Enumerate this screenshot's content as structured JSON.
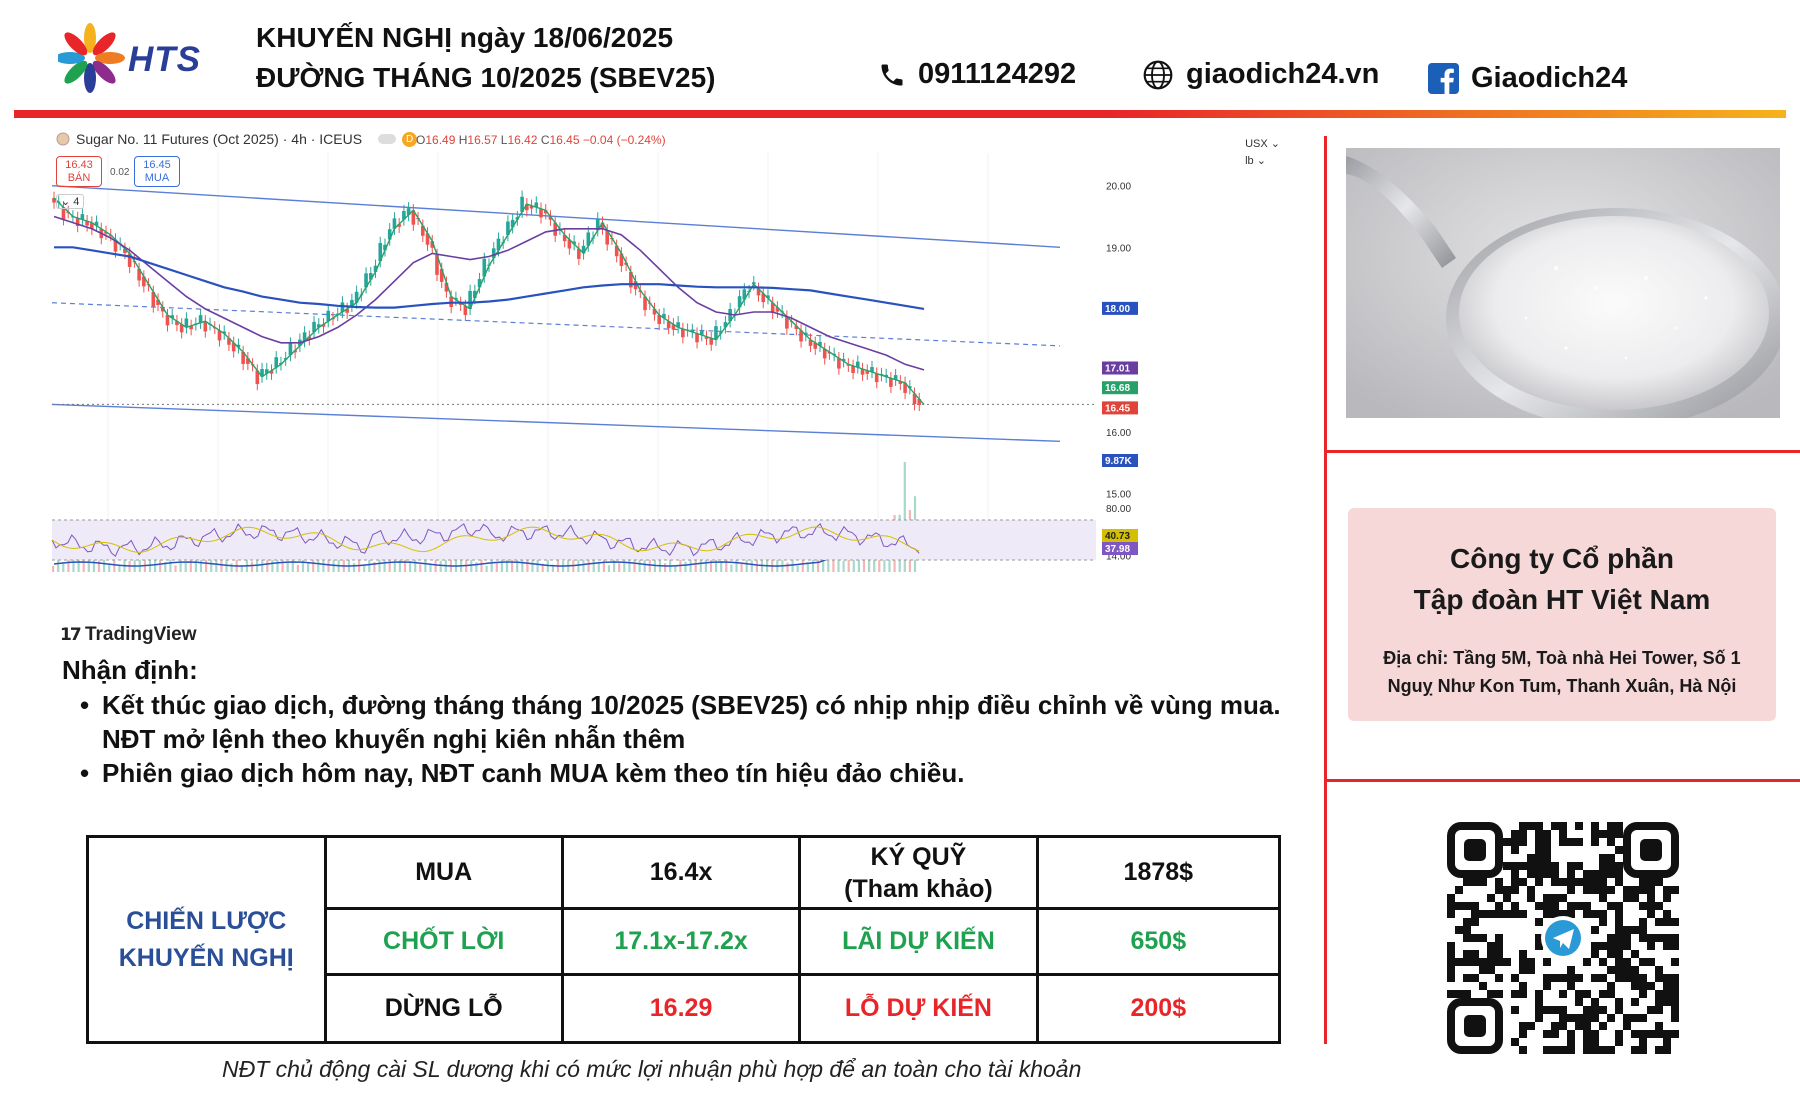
{
  "brand": {
    "logo_text": "HTS",
    "logo_icon": "hts-pinwheel-logo"
  },
  "header": {
    "title_line1": "KHUYẾN NGHỊ ngày 18/06/2025",
    "title_line2": "ĐƯỜNG THÁNG 10/2025 (SBEV25)",
    "phone": "0911124292",
    "website": "giaodich24.vn",
    "facebook": "Giaodich24"
  },
  "colors": {
    "accent_red": "#e8262a",
    "brand_blue": "#2a3e98",
    "profit_green": "#1ea24f",
    "strategy_blue": "#2a4f98",
    "company_box_bg": "#f6d8d8"
  },
  "chart_header": {
    "symbol": "Sugar No. 11 Futures (Oct 2025) · 4h · ICEUS",
    "delay_badge": "D",
    "ohlc": {
      "o": "16.49",
      "h": "16.57",
      "l": "16.42",
      "c": "16.45",
      "change": "−0.04 (−0.24%)"
    },
    "sell_price": "16.43",
    "sell_label": "BÁN",
    "buy_price": "16.45",
    "buy_label": "MUA",
    "spread": "0.02",
    "indicator_count": "4",
    "currency": "USX",
    "unit": "lb",
    "watermark": "TradingView"
  },
  "chart_data": {
    "type": "line",
    "title": "Sugar No. 11 Futures (Oct 2025) · 4h · ICEUS",
    "ylim": [
      13.6,
      20.4
    ],
    "y_ticks": [
      "20.00",
      "19.00",
      "18.00",
      "17.00",
      "16.00",
      "15.00",
      "14.00"
    ],
    "price_labels": [
      {
        "value": "18.00",
        "color": "#2a52be"
      },
      {
        "value": "17.01",
        "color": "#6a3ea1"
      },
      {
        "value": "16.68",
        "color": "#26a269"
      },
      {
        "value": "16.45",
        "color": "#e0433a"
      },
      {
        "value": "9.87K",
        "color": "#2a52be"
      }
    ],
    "rsi_ticks": [
      "80.00"
    ],
    "rsi_labels": [
      {
        "value": "40.73",
        "color": "#d4c000"
      },
      {
        "value": "37.98",
        "color": "#7e57c2"
      }
    ],
    "series": [
      {
        "values": [
          19.8,
          19.5,
          19.4,
          19.2,
          18.9,
          18.4,
          17.9,
          17.7,
          17.8,
          17.6,
          17.3,
          16.9,
          17.1,
          17.4,
          17.7,
          17.9,
          18.1,
          18.6,
          19.3,
          19.6,
          19.1,
          18.2,
          18.0,
          18.7,
          19.2,
          19.7,
          19.6,
          19.2,
          18.9,
          19.4,
          18.9,
          18.3,
          17.9,
          17.7,
          17.6,
          17.5,
          17.9,
          18.4,
          18.1,
          17.8,
          17.5,
          17.3,
          17.1,
          17.0,
          16.9,
          16.8,
          16.45
        ]
      },
      {
        "values": [
          19.5,
          19.4,
          19.3,
          19.15,
          18.95,
          18.7,
          18.45,
          18.2,
          18.0,
          17.85,
          17.7,
          17.55,
          17.45,
          17.45,
          17.55,
          17.7,
          17.9,
          18.15,
          18.45,
          18.75,
          18.9,
          18.85,
          18.8,
          18.85,
          18.95,
          19.1,
          19.25,
          19.3,
          19.3,
          19.3,
          19.2,
          18.95,
          18.65,
          18.35,
          18.1,
          17.95,
          17.9,
          17.95,
          17.95,
          17.85,
          17.7,
          17.55,
          17.45,
          17.35,
          17.25,
          17.1,
          17.01
        ]
      },
      {
        "values": [
          19.0,
          19.0,
          18.95,
          18.9,
          18.85,
          18.75,
          18.65,
          18.55,
          18.45,
          18.35,
          18.28,
          18.2,
          18.15,
          18.1,
          18.08,
          18.05,
          18.03,
          18.02,
          18.02,
          18.05,
          18.08,
          18.1,
          18.1,
          18.12,
          18.15,
          18.2,
          18.25,
          18.3,
          18.35,
          18.38,
          18.4,
          18.4,
          18.4,
          18.38,
          18.36,
          18.35,
          18.35,
          18.35,
          18.34,
          18.32,
          18.3,
          18.25,
          18.2,
          18.15,
          18.1,
          18.05,
          18.0
        ]
      }
    ]
  },
  "analysis": {
    "title": "Nhận định:",
    "bullets": [
      "Kết thúc giao dịch, đường tháng tháng 10/2025 (SBEV25) có nhịp nhịp điều chỉnh về vùng mua.",
      "Phiên giao dịch hôm nay, NĐT canh MUA kèm theo tín hiệu đảo chiều."
    ],
    "bullet1_line2": "NĐT mở lệnh theo khuyến nghị kiên nhẫn thêm"
  },
  "strategy_table": {
    "label_line1": "CHIẾN LƯỢC",
    "label_line2": "KHUYẾN NGHỊ",
    "row1": {
      "action": "MUA",
      "price": "16.4x",
      "margin_label_1": "KÝ QUỸ",
      "margin_label_2": "(Tham khảo)",
      "margin_value": "1878$"
    },
    "row2": {
      "action": "CHỐT LỜI",
      "price": "17.1x-17.2x",
      "label": "LÃI DỰ KIẾN",
      "value": "650$"
    },
    "row3": {
      "action": "DỪNG LỖ",
      "price": "16.29",
      "label": "LỖ DỰ KIẾN",
      "value": "200$"
    }
  },
  "disclaimer": "NĐT chủ động cài SL dương khi có mức lợi nhuận phù hợp để an toàn cho tài khoản",
  "company": {
    "name_line1": "Công ty Cổ phần",
    "name_line2": "Tập đoàn HT Việt Nam",
    "address_line1": "Địa chỉ: Tầng 5M, Toà nhà Hei Tower, Số 1",
    "address_line2": "Nguỵ Như Kon Tum, Thanh Xuân, Hà Nội"
  },
  "images": {
    "sugar_photo": "sugar-spoon-photo",
    "qr_code": "telegram-qr-code"
  }
}
